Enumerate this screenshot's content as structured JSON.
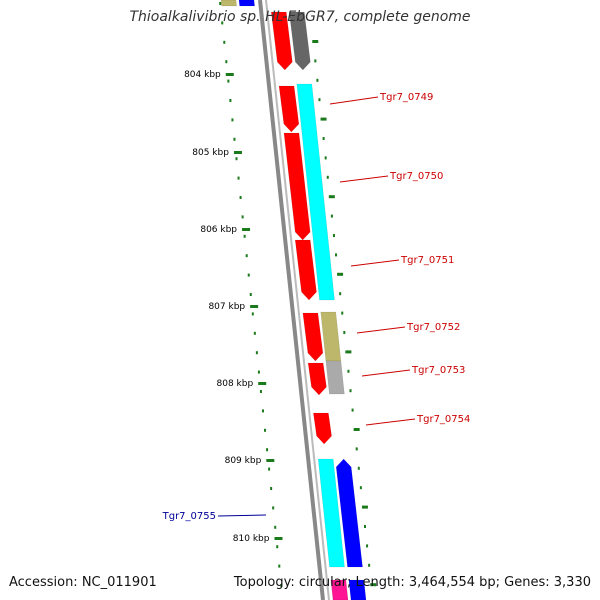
{
  "title": "Thioalkalivibrio sp. HL-EbGR7, complete genome",
  "footer": {
    "accession": "Accession: NC_011901",
    "topology": "Topology: circular; Length: 3,464,554 bp; Genes: 3,330"
  },
  "colors": {
    "backbone": "#888888",
    "ruler": "#1b7a1b",
    "forward_label": "#cc0000",
    "reverse_label": "#000099",
    "red": "#ff0000",
    "cyan": "#00ffff",
    "blue": "#0000ff",
    "olive": "#bdb76b",
    "gray": "#aaaaaa",
    "dark_gray": "#666666",
    "magenta": "#ff1493"
  },
  "ruler": {
    "ticks": [
      "804 kbp",
      "805 kbp",
      "806 kbp",
      "807 kbp",
      "808 kbp",
      "809 kbp",
      "810 kbp"
    ]
  },
  "gene_labels": [
    {
      "text": "Tgr7_0749",
      "strand": "forward"
    },
    {
      "text": "Tgr7_0750",
      "strand": "forward"
    },
    {
      "text": "Tgr7_0751",
      "strand": "forward"
    },
    {
      "text": "Tgr7_0752",
      "strand": "forward"
    },
    {
      "text": "Tgr7_0753",
      "strand": "forward"
    },
    {
      "text": "Tgr7_0754",
      "strand": "forward"
    },
    {
      "text": "Tgr7_0755",
      "strand": "reverse"
    }
  ]
}
